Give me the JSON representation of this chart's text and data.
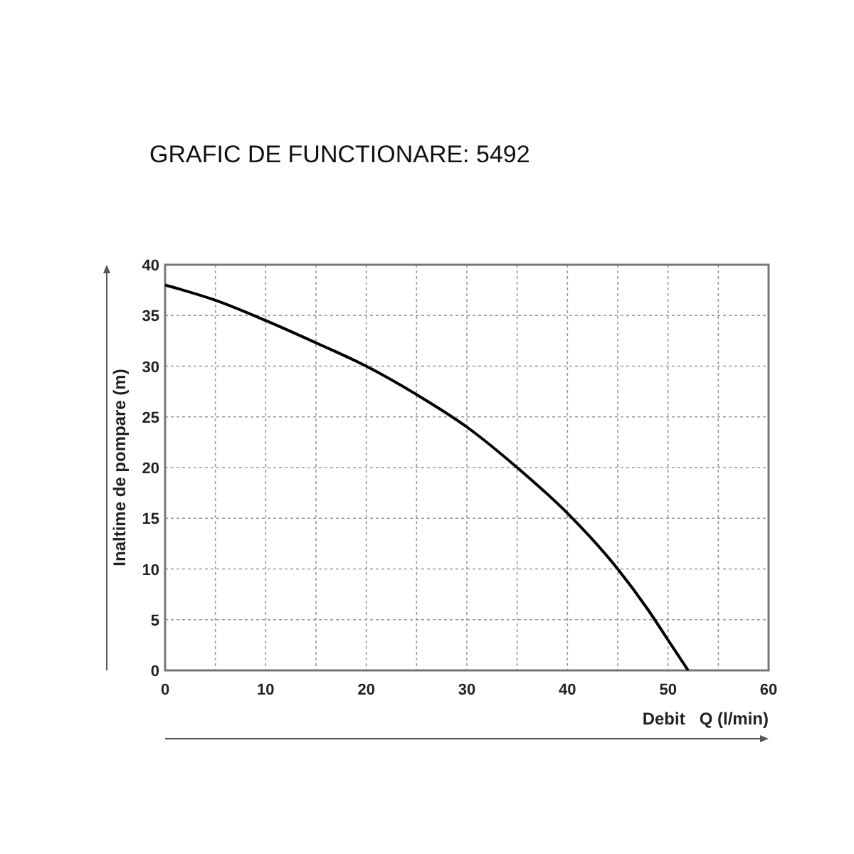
{
  "chart_data": {
    "type": "line",
    "title": "GRAFIC DE FUNCTIONARE: 5492",
    "xlabel": "Debit   Q (l/min)",
    "ylabel": "Inaltime de pompare (m)",
    "x": [
      0,
      5,
      10,
      15,
      20,
      25,
      30,
      35,
      40,
      45,
      48,
      50,
      52
    ],
    "series": [
      {
        "color": "#000000",
        "values": [
          38,
          36.5,
          34.5,
          32.3,
          30,
          27.2,
          24,
          20,
          15.5,
          10,
          6,
          3,
          0
        ]
      }
    ],
    "xlim": [
      0,
      60
    ],
    "ylim": [
      0,
      40
    ],
    "xticks": [
      0,
      {
        "value": 5,
        "label": null
      },
      10,
      {
        "value": 15,
        "label": null
      },
      20,
      {
        "value": 25,
        "label": null
      },
      30,
      {
        "value": 35,
        "label": null
      },
      40,
      {
        "value": 45,
        "label": null
      },
      50,
      {
        "value": 55,
        "label": null
      },
      60
    ],
    "yticks": [
      0,
      5,
      10,
      15,
      20,
      25,
      30,
      35,
      40
    ],
    "grid": true,
    "marker": "none",
    "line_style": "solid"
  }
}
